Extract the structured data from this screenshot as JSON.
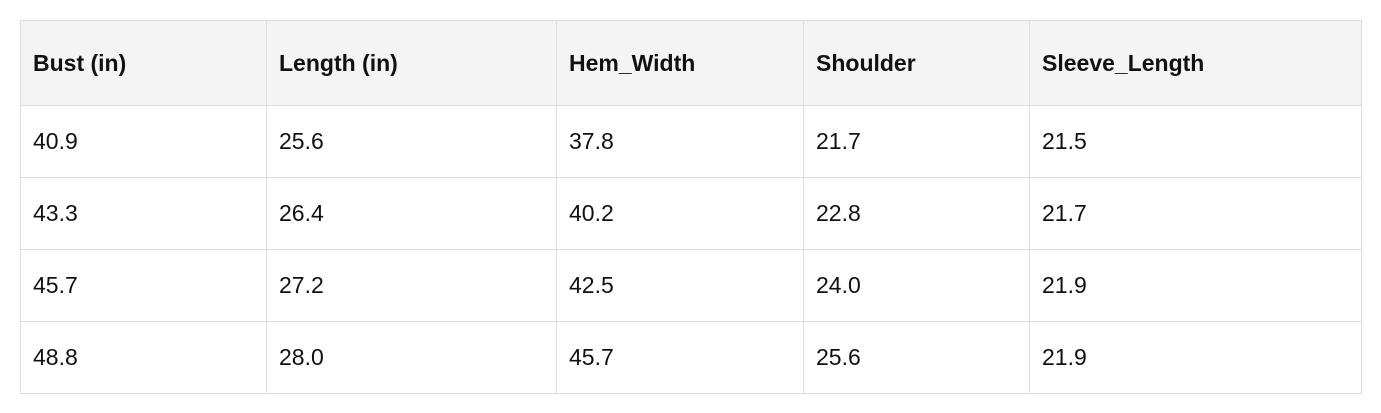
{
  "table": {
    "header": [
      "Bust (in)",
      "Length (in)",
      "Hem_Width",
      "Shoulder",
      "Sleeve_Length"
    ],
    "rows": [
      [
        "40.9",
        "25.6",
        "37.8",
        "21.7",
        "21.5"
      ],
      [
        "43.3",
        "26.4",
        "40.2",
        "22.8",
        "21.7"
      ],
      [
        "45.7",
        "27.2",
        "42.5",
        "24.0",
        "21.9"
      ],
      [
        "48.8",
        "28.0",
        "45.7",
        "25.6",
        "21.9"
      ]
    ]
  }
}
